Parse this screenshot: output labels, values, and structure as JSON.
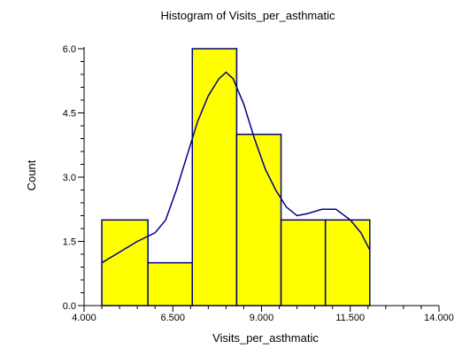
{
  "chart_data": {
    "type": "bar",
    "title": "Histogram of Visits_per_asthmatic",
    "xlabel": "Visits_per_asthmatic",
    "ylabel": "Count",
    "xlim": [
      4.0,
      14.0
    ],
    "ylim": [
      0.0,
      6.0
    ],
    "x_ticks": [
      "4.000",
      "6.500",
      "9.000",
      "11.500",
      "14.000"
    ],
    "y_ticks": [
      "0.0",
      "1.5",
      "3.0",
      "4.5",
      "6.0"
    ],
    "bins": [
      {
        "start": 4.5,
        "end": 5.8,
        "count": 2
      },
      {
        "start": 5.8,
        "end": 7.05,
        "count": 1
      },
      {
        "start": 7.05,
        "end": 8.3,
        "count": 6
      },
      {
        "start": 8.3,
        "end": 9.55,
        "count": 4
      },
      {
        "start": 9.55,
        "end": 10.8,
        "count": 2
      },
      {
        "start": 10.8,
        "end": 12.05,
        "count": 2
      }
    ],
    "density_curve": {
      "x": [
        4.5,
        5.0,
        5.5,
        6.0,
        6.3,
        6.6,
        6.9,
        7.2,
        7.5,
        7.8,
        8.0,
        8.2,
        8.5,
        8.8,
        9.1,
        9.4,
        9.7,
        10.0,
        10.3,
        10.7,
        11.1,
        11.5,
        11.8,
        12.05
      ],
      "y": [
        1.0,
        1.25,
        1.5,
        1.7,
        2.0,
        2.7,
        3.5,
        4.3,
        4.9,
        5.3,
        5.45,
        5.3,
        4.7,
        3.9,
        3.2,
        2.7,
        2.3,
        2.1,
        2.15,
        2.25,
        2.25,
        2.0,
        1.7,
        1.3
      ]
    },
    "colors": {
      "bar_fill": "#ffff00",
      "bar_stroke": "#000080",
      "curve": "#000080",
      "axis": "#000000"
    },
    "grid": false,
    "legend": "none"
  }
}
